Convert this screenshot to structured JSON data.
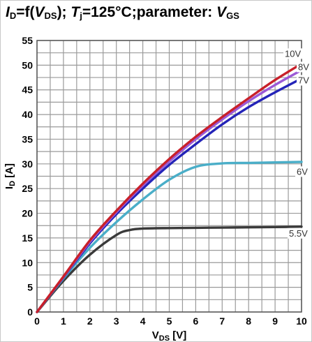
{
  "title": {
    "i": "I",
    "i_sub": "D",
    "eq": "=f(",
    "v": "V",
    "v_sub": "DS",
    "close": "); ",
    "t": "T",
    "t_sub": "j",
    "rest": "=125°C;parameter: ",
    "p": "V",
    "p_sub": "GS"
  },
  "chart_data": {
    "type": "line",
    "title": "ID=f(VDS); Tj=125°C;parameter: VGS",
    "xlabel": "VDS [V]",
    "ylabel": "ID [A]",
    "xlim": [
      0,
      10
    ],
    "ylim": [
      0,
      55
    ],
    "xticks": [
      0,
      1,
      2,
      3,
      4,
      5,
      6,
      7,
      8,
      9,
      10
    ],
    "yticks": [
      0,
      5,
      10,
      15,
      20,
      25,
      30,
      35,
      40,
      45,
      50,
      55
    ],
    "grid": true,
    "series": [
      {
        "name": "10V",
        "color": "#c8202a",
        "x": [
          0,
          1,
          2,
          3,
          4,
          5,
          6,
          7,
          8,
          9,
          10
        ],
        "y": [
          0,
          7.2,
          14.5,
          20.5,
          26,
          31,
          35.5,
          39.5,
          43.3,
          47,
          50.3
        ]
      },
      {
        "name": "8V",
        "color": "#9b59d6",
        "x": [
          0,
          1,
          2,
          3,
          4,
          5,
          6,
          7,
          8,
          9,
          10
        ],
        "y": [
          0,
          7.1,
          14.2,
          20.2,
          25.6,
          30.5,
          35,
          39,
          42.7,
          46,
          49
        ]
      },
      {
        "name": "7V",
        "color": "#2424b8",
        "x": [
          0,
          1,
          2,
          3,
          4,
          5,
          6,
          7,
          8,
          9,
          10
        ],
        "y": [
          0,
          7,
          13.9,
          19.8,
          25,
          29.8,
          34,
          38,
          41.5,
          44.5,
          47.3
        ]
      },
      {
        "name": "6V",
        "color": "#4aaec8",
        "x": [
          0,
          1,
          2,
          3,
          4,
          5,
          6,
          7,
          8,
          9,
          10
        ],
        "y": [
          0,
          6.8,
          13,
          18.2,
          22.8,
          26.8,
          29.4,
          30.1,
          30.2,
          30.3,
          30.4
        ]
      },
      {
        "name": "5.5V",
        "color": "#3a3a3a",
        "x": [
          0,
          1,
          2,
          3,
          3.5,
          4,
          5,
          6,
          7,
          8,
          9,
          10
        ],
        "y": [
          0,
          6.3,
          11.6,
          15.6,
          16.6,
          16.9,
          17,
          17.05,
          17.1,
          17.15,
          17.2,
          17.3
        ]
      }
    ]
  }
}
